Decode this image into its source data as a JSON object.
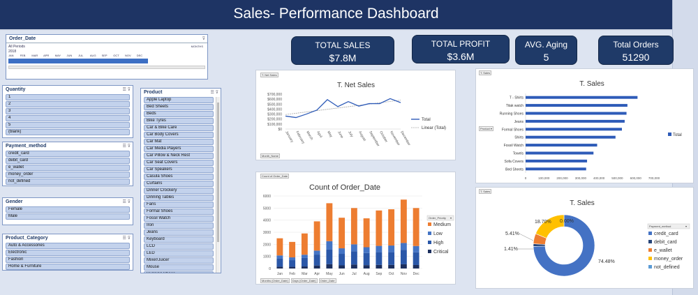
{
  "header": {
    "title": "Sales- Performance Dashboard"
  },
  "kpis": [
    {
      "label": "TOTAL SALES",
      "value": "$7.8M"
    },
    {
      "label": "TOTAL PROFIT",
      "value": "$3.6M"
    },
    {
      "label": "AVG. Aging",
      "value": "5"
    },
    {
      "label": "Total Orders",
      "value": "51290"
    }
  ],
  "timeline": {
    "title": "Order_Date",
    "all_periods": "All Periods",
    "unit": "MONTHS",
    "year": "2018",
    "months": [
      "JAN",
      "FEB",
      "MAR",
      "APR",
      "MAY",
      "JUN",
      "JUL",
      "AUG",
      "SEP",
      "OCT",
      "NOV",
      "DEC"
    ]
  },
  "slicers": {
    "quantity": {
      "title": "Quantity",
      "items": [
        "1",
        "2",
        "3",
        "4",
        "5",
        "(blank)"
      ]
    },
    "payment": {
      "title": "Payment_method",
      "items": [
        "credit_card",
        "debit_card",
        "e_wallet",
        "money_order",
        "not_defined"
      ]
    },
    "gender": {
      "title": "Gender",
      "items": [
        "Female",
        "Male"
      ]
    },
    "category": {
      "title": "Product_Category",
      "items": [
        "Auto & Accessories",
        "Electronic",
        "Fashion",
        "Home & Furniture"
      ]
    },
    "product": {
      "title": "Product",
      "items": [
        "Apple Laptop",
        "Bed Sheets",
        "Beds",
        "Bike Tyres",
        "Car & Bike Care",
        "Car Body Covers",
        "Car Mat",
        "Car Media Players",
        "Car Pillow & Neck Rest",
        "Car Seat Covers",
        "Car Speakers",
        "Casula Shoes",
        "Curtains",
        "Dinner Crockery",
        "Dinning Tables",
        "Fans",
        "Formal Shoes",
        "Fossil Watch",
        "Iron",
        "Jeans",
        "Keyboard",
        "LCD",
        "LED",
        "Mixer/Juicer",
        "Mouse",
        "Running Shoes"
      ]
    }
  },
  "icons": {
    "multiselect": "multi-select-icon",
    "clear_filter": "clear-filter-icon",
    "filter": "filter-icon"
  },
  "charts": {
    "net_sales": {
      "tag": "T. Net Sales",
      "field_tag": "Month_Name",
      "legend_total": "Total",
      "legend_linear": "Linear (Total)"
    },
    "count_orders": {
      "tag": "Count of Order_Date",
      "legend_title": "Order_Priority",
      "filter_tags": [
        "Months (Order_Date)",
        "Days (Order_Date)",
        "Order_Date"
      ]
    },
    "t_sales": {
      "tag": "T. Sales",
      "field_tag": "Product"
    },
    "payment_donut": {
      "tag": "T. Sales",
      "legend_title": "Payment_method"
    }
  },
  "chart_data": [
    {
      "type": "line",
      "title": "T. Net Sales",
      "categories": [
        "January",
        "February",
        "March",
        "April",
        "May",
        "June",
        "July",
        "August",
        "September",
        "October",
        "November",
        "December"
      ],
      "series": [
        {
          "name": "Total",
          "values": [
            260000,
            230000,
            300000,
            380000,
            590000,
            450000,
            550000,
            460000,
            510000,
            510000,
            610000,
            530000
          ]
        }
      ],
      "trendline": {
        "name": "Linear (Total)",
        "start": 290000,
        "end": 580000
      },
      "ylim": [
        0,
        700000
      ],
      "yticks": [
        "$0",
        "$100,000",
        "$200,000",
        "$300,000",
        "$400,000",
        "$500,000",
        "$600,000",
        "$700,000"
      ],
      "colors": {
        "Total": "#2e5bb8",
        "Linear (Total)": "#a8a8a8"
      }
    },
    {
      "type": "bar",
      "stacked": true,
      "title": "Count of Order_Date",
      "categories": [
        "Jan",
        "Feb",
        "Mar",
        "Apr",
        "May",
        "Jun",
        "Jul",
        "Aug",
        "Sep",
        "Oct",
        "Nov",
        "Dec"
      ],
      "series": [
        {
          "name": "Critical",
          "values": [
            150,
            140,
            170,
            250,
            360,
            260,
            330,
            280,
            300,
            300,
            350,
            290
          ]
        },
        {
          "name": "High",
          "values": [
            680,
            550,
            700,
            900,
            1200,
            950,
            1100,
            1000,
            1050,
            1050,
            1200,
            1050
          ]
        },
        {
          "name": "Low",
          "values": [
            250,
            230,
            270,
            330,
            700,
            460,
            570,
            480,
            520,
            550,
            560,
            520
          ]
        },
        {
          "name": "Medium",
          "values": [
            1420,
            1280,
            1760,
            2420,
            3140,
            2530,
            3000,
            2390,
            2930,
            3000,
            3590,
            3140
          ]
        }
      ],
      "ylim": [
        0,
        6000
      ],
      "yticks": [
        "0",
        "1000",
        "2000",
        "3000",
        "4000",
        "5000",
        "6000"
      ],
      "colors": {
        "Critical": "#1c2f5e",
        "High": "#2a57a8",
        "Low": "#4474c4",
        "Medium": "#ed7d31"
      }
    },
    {
      "type": "bar",
      "orientation": "horizontal",
      "title": "T. Sales",
      "legend": "Total",
      "categories": [
        "T - Shirts",
        "Titak watch",
        "Running Shoes",
        "Jeans",
        "Formal Shoes",
        "Shirts",
        "Fossil Watch",
        "Towels",
        "Sofa Covers",
        "Bed Sheets"
      ],
      "values": [
        610000,
        555000,
        550000,
        540000,
        525000,
        490000,
        390000,
        370000,
        335000,
        330000
      ],
      "xlim": [
        0,
        700000
      ],
      "xticks": [
        "0",
        "100,000",
        "200,000",
        "300,000",
        "400,000",
        "500,000",
        "600,000",
        "700,000"
      ],
      "color": "#2e5bb8"
    },
    {
      "type": "pie",
      "donut": true,
      "title": "T. Sales",
      "labels": [
        "credit_card",
        "debit_card",
        "e_wallet",
        "money_order",
        "not_defined"
      ],
      "values": [
        74.48,
        1.41,
        5.41,
        18.7,
        0.0
      ],
      "data_labels": [
        "74.48%",
        "1.41%",
        "5.41%",
        "18.70%",
        "0.00%"
      ],
      "colors": {
        "credit_card": "#4472c4",
        "debit_card": "#264478",
        "e_wallet": "#ed7d31",
        "money_order": "#ffc000",
        "not_defined": "#5b9bd5"
      }
    }
  ]
}
